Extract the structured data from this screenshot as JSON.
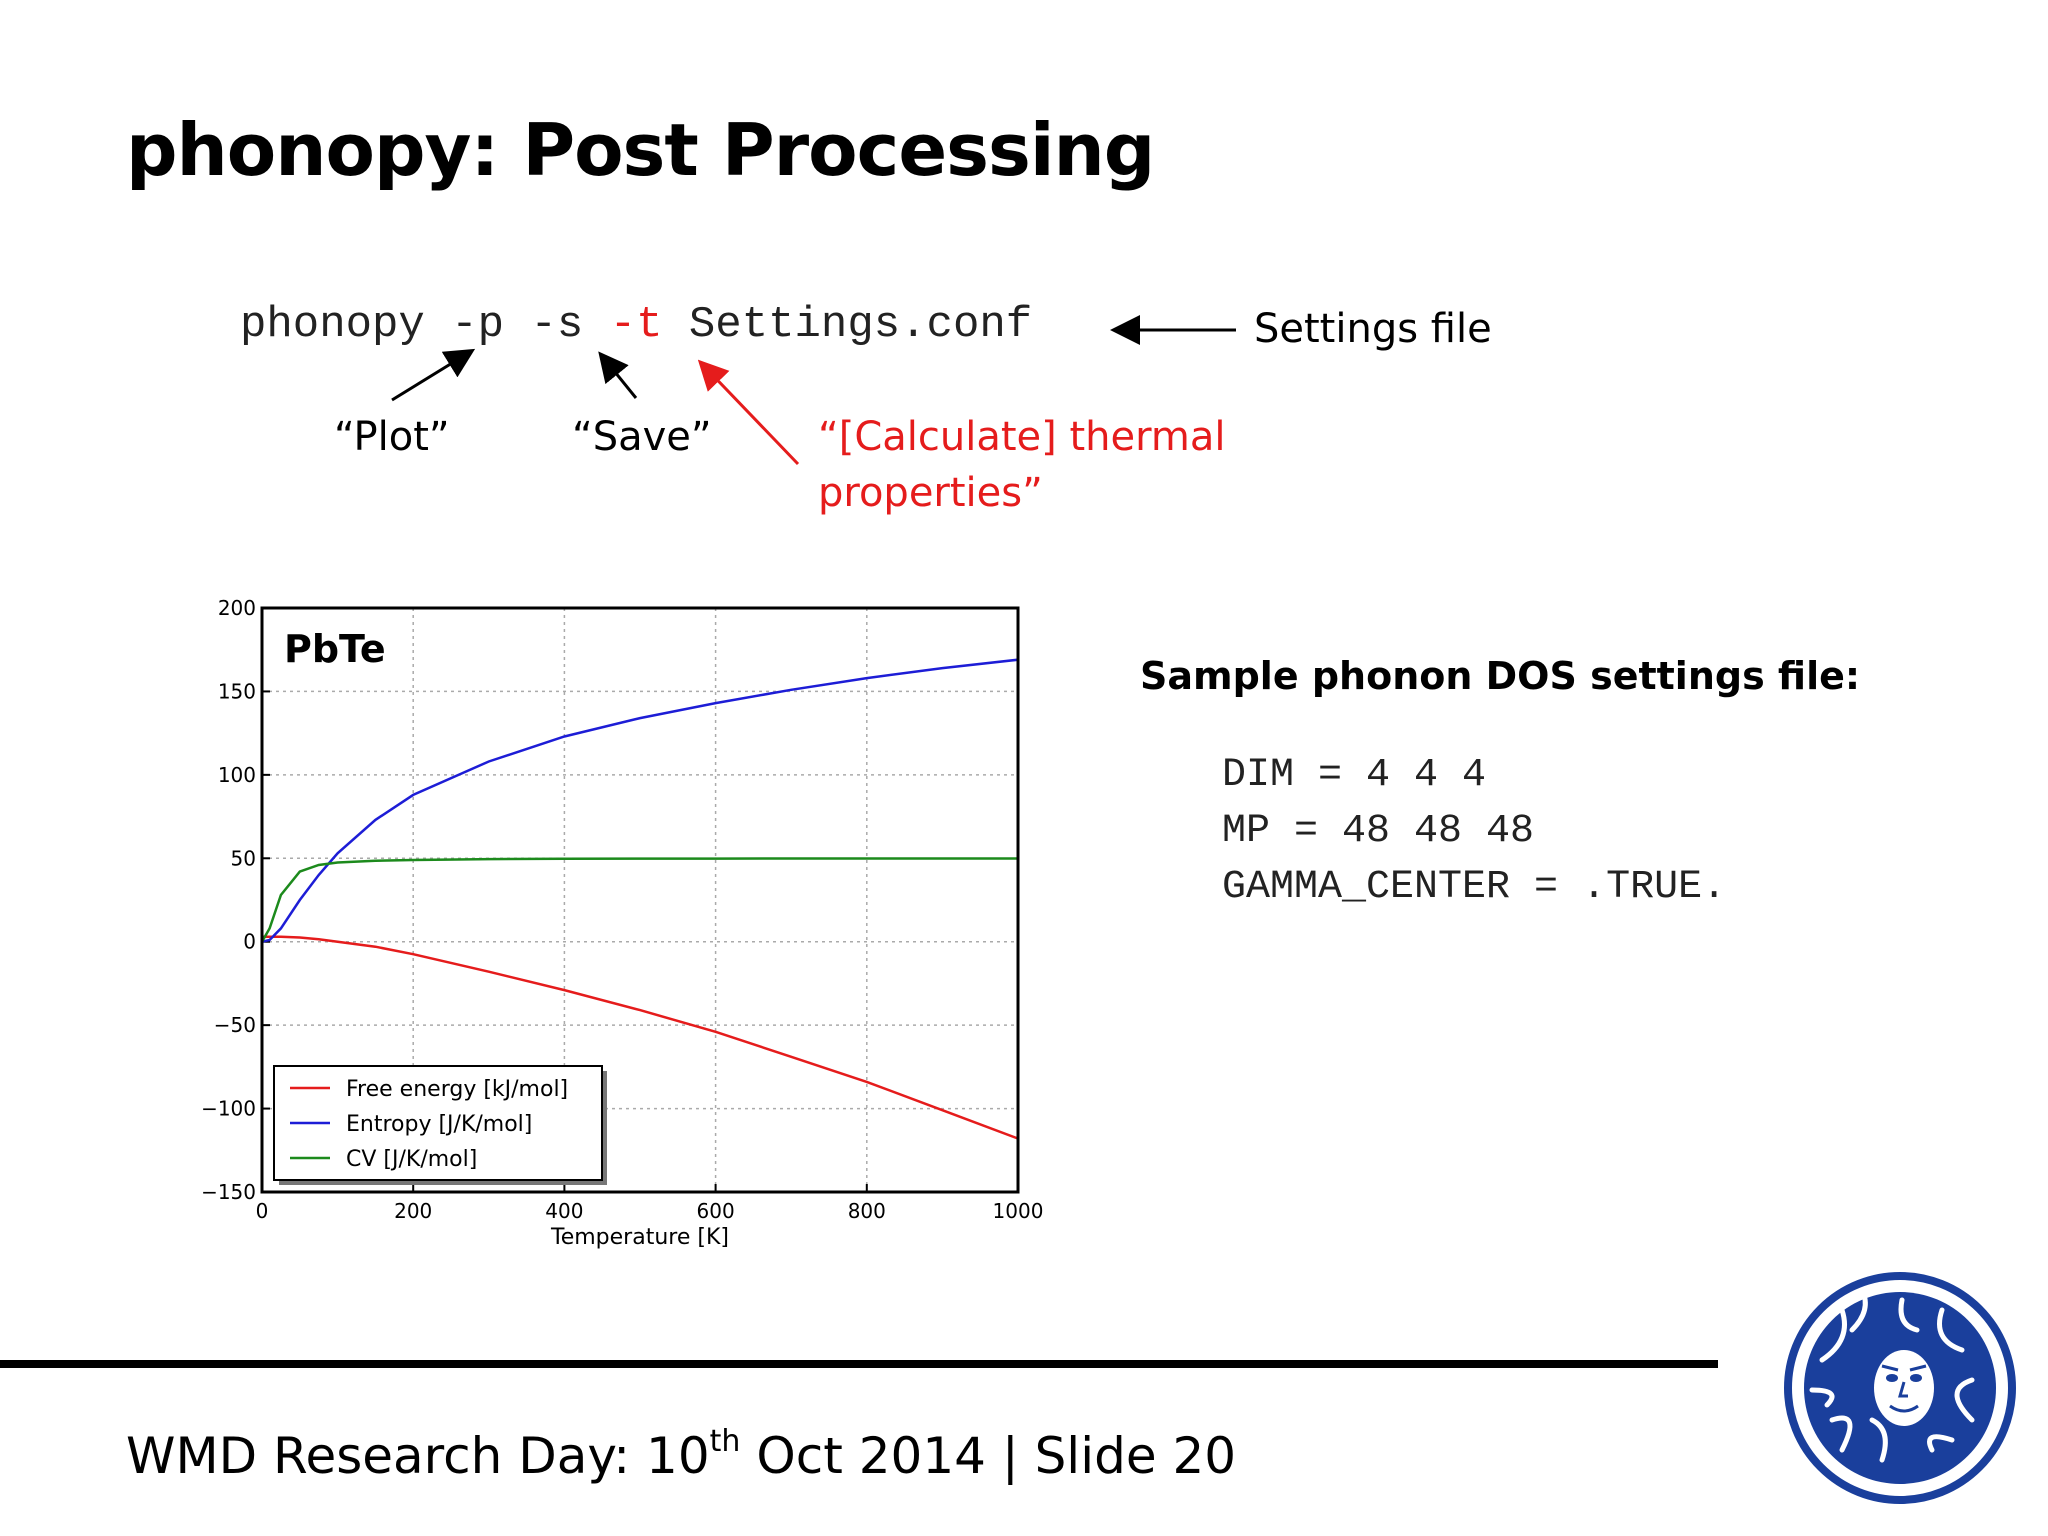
{
  "slide": {
    "title": "phonopy: Post Processing",
    "command": {
      "prog": "phonopy",
      "flag_p": "-p",
      "flag_s": "-s",
      "flag_t": "-t",
      "file": "Settings.conf"
    },
    "annotations": {
      "settings_file": "Settings file",
      "plot": "“Plot”",
      "save": "“Save”",
      "thermal_line1": "“[Calculate] thermal",
      "thermal_line2": "properties”"
    },
    "sample": {
      "title": "Sample phonon DOS settings file:",
      "lines": [
        "DIM = 4 4 4",
        "MP = 48 48 48",
        "GAMMA_CENTER = .TRUE."
      ]
    },
    "footer": {
      "prefix": "WMD Research Day: 10",
      "sup": "th",
      "suffix": " Oct 2014 | Slide 20"
    },
    "colors": {
      "accent_red": "#e51c1c",
      "logo_blue": "#1a3f9c"
    },
    "logo_icon": "university-seal-icon"
  },
  "chart_data": {
    "type": "line",
    "title": "PbTe",
    "xlabel": "Temperature [K]",
    "ylabel": "",
    "xlim": [
      0,
      1000
    ],
    "ylim": [
      -150,
      200
    ],
    "xticks": [
      0,
      200,
      400,
      600,
      800,
      1000
    ],
    "yticks": [
      -150,
      -100,
      -50,
      0,
      50,
      100,
      150,
      200
    ],
    "grid": true,
    "legend_position": "bottom-left",
    "x": [
      0,
      10,
      25,
      50,
      75,
      100,
      150,
      200,
      300,
      400,
      500,
      600,
      700,
      800,
      900,
      1000
    ],
    "series": [
      {
        "name": "Free energy [kJ/mol]",
        "color": "#e51c1c",
        "values": [
          3,
          3,
          3,
          2.5,
          1.5,
          0,
          -3,
          -7.5,
          -18,
          -29,
          -41,
          -54,
          -69,
          -84,
          -101,
          -118
        ]
      },
      {
        "name": "Entropy [J/K/mol]",
        "color": "#1d1dd6",
        "values": [
          0,
          1,
          8,
          25,
          40,
          53,
          73,
          88,
          108,
          123,
          134,
          143,
          151,
          158,
          164,
          169
        ]
      },
      {
        "name": "CV [J/K/mol]",
        "color": "#1c8a1c",
        "values": [
          0,
          8,
          28,
          42,
          46,
          47.5,
          48.5,
          49,
          49.5,
          49.7,
          49.8,
          49.8,
          49.9,
          49.9,
          49.9,
          49.9
        ]
      }
    ]
  }
}
